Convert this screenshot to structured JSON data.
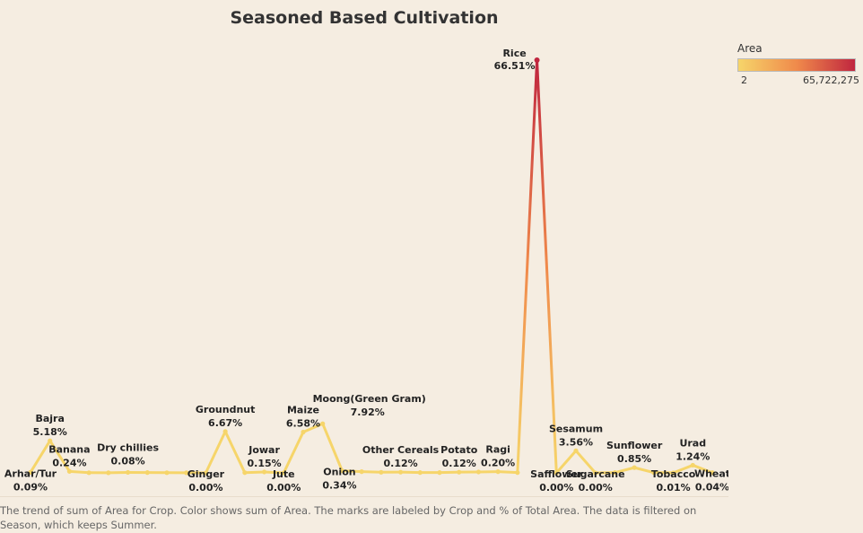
{
  "chart_data": {
    "type": "line",
    "title": "Seasoned Based Cultivation",
    "series_measure": "Area",
    "label_measure": "% of Total Area",
    "points": [
      {
        "crop": "Arhar/Tur",
        "pct": "0.09%",
        "share": 0.09,
        "labeled": true
      },
      {
        "crop": "Bajra",
        "pct": "5.18%",
        "share": 5.18,
        "labeled": true
      },
      {
        "crop": "Banana",
        "pct": "0.24%",
        "share": 0.24,
        "labeled": true
      },
      {
        "crop": "",
        "pct": "",
        "share": 0.03,
        "labeled": false
      },
      {
        "crop": "",
        "pct": "",
        "share": 0.02,
        "labeled": false
      },
      {
        "crop": "Dry chillies",
        "pct": "0.08%",
        "share": 0.08,
        "labeled": true
      },
      {
        "crop": "",
        "pct": "",
        "share": 0.05,
        "labeled": false
      },
      {
        "crop": "",
        "pct": "",
        "share": 0.03,
        "labeled": false
      },
      {
        "crop": "",
        "pct": "",
        "share": 0.02,
        "labeled": false
      },
      {
        "crop": "Ginger",
        "pct": "0.00%",
        "share": 0.0,
        "labeled": true
      },
      {
        "crop": "Groundnut",
        "pct": "6.67%",
        "share": 6.67,
        "labeled": true
      },
      {
        "crop": "",
        "pct": "",
        "share": 0.04,
        "labeled": false
      },
      {
        "crop": "Jowar",
        "pct": "0.15%",
        "share": 0.15,
        "labeled": true
      },
      {
        "crop": "Jute",
        "pct": "0.00%",
        "share": 0.0,
        "labeled": true
      },
      {
        "crop": "Maize",
        "pct": "6.58%",
        "share": 6.58,
        "labeled": true
      },
      {
        "crop": "Moong(Green Gram)",
        "pct": "7.92%",
        "share": 7.92,
        "labeled": true
      },
      {
        "crop": "Onion",
        "pct": "0.34%",
        "share": 0.34,
        "labeled": true
      },
      {
        "crop": "",
        "pct": "",
        "share": 0.2,
        "labeled": false
      },
      {
        "crop": "",
        "pct": "",
        "share": 0.1,
        "labeled": false
      },
      {
        "crop": "Other Cereals",
        "pct": "0.12%",
        "share": 0.12,
        "labeled": true
      },
      {
        "crop": "",
        "pct": "",
        "share": 0.05,
        "labeled": false
      },
      {
        "crop": "",
        "pct": "",
        "share": 0.05,
        "labeled": false
      },
      {
        "crop": "Potato",
        "pct": "0.12%",
        "share": 0.12,
        "labeled": true
      },
      {
        "crop": "",
        "pct": "",
        "share": 0.15,
        "labeled": false
      },
      {
        "crop": "Ragi",
        "pct": "0.20%",
        "share": 0.2,
        "labeled": true
      },
      {
        "crop": "",
        "pct": "",
        "share": 0.05,
        "labeled": false
      },
      {
        "crop": "Rice",
        "pct": "66.51%",
        "share": 66.51,
        "labeled": true
      },
      {
        "crop": "Safflower",
        "pct": "0.00%",
        "share": 0.0,
        "labeled": true
      },
      {
        "crop": "Sesamum",
        "pct": "3.56%",
        "share": 3.56,
        "labeled": true
      },
      {
        "crop": "Sugarcane",
        "pct": "0.00%",
        "share": 0.0,
        "labeled": true
      },
      {
        "crop": "",
        "pct": "",
        "share": 0.05,
        "labeled": false
      },
      {
        "crop": "Sunflower",
        "pct": "0.85%",
        "share": 0.85,
        "labeled": true
      },
      {
        "crop": "",
        "pct": "",
        "share": 0.05,
        "labeled": false
      },
      {
        "crop": "Tobacco",
        "pct": "0.01%",
        "share": 0.01,
        "labeled": true
      },
      {
        "crop": "Urad",
        "pct": "1.24%",
        "share": 1.24,
        "labeled": true
      },
      {
        "crop": "Wheat",
        "pct": "0.04%",
        "share": 0.04,
        "labeled": true
      }
    ],
    "legend": {
      "title": "Area",
      "min_label": "2",
      "max_label": "65,722,275",
      "color_low": "#f6d56a",
      "color_mid": "#f08a4b",
      "color_high": "#c0263f",
      "placement": "top-right"
    },
    "grid": false
  },
  "caption": "The trend of sum of Area for Crop.  Color shows sum of Area.  The marks are labeled by Crop and % of Total Area. The data is filtered on Season, which keeps Summer."
}
